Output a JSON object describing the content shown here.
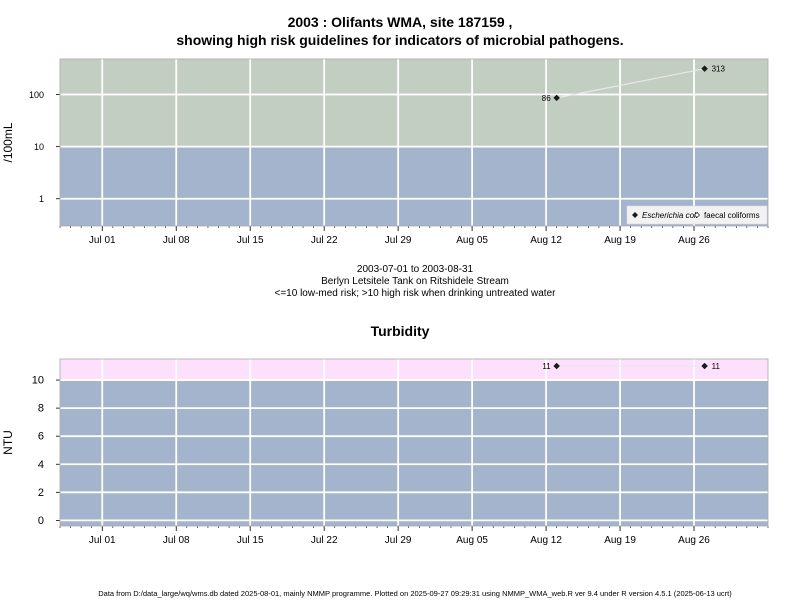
{
  "header": {
    "title_line1": "2003 : Olifants WMA, site 187159 ,",
    "title_line2": "showing high risk guidelines for indicators of microbial pathogens."
  },
  "info": {
    "date_range": "2003-07-01 to 2003-08-31",
    "site_name": "Berlyn Letsitele Tank on Ritshidele Stream",
    "risk_note": "<=10 low-med risk; >10 high risk when drinking untreated water"
  },
  "footer": {
    "text": "Data from D:/data_large/wq/wms.db dated 2025-08-01, mainly NMMP programme. Plotted on 2025-09-27 09:29:31 using NMMP_WMA_web.R ver 9.4 under R version 4.5.1 (2025-06-13 ucrt)"
  },
  "colors": {
    "low_band": "#a3b4cc",
    "high_band_micro": "#c3cec3",
    "high_band_turb": "#fce0fc",
    "grid": "#ffffff",
    "line": "#e8e8e8",
    "point": "#1a1a1a"
  },
  "chart_data": [
    {
      "type": "line",
      "title": "",
      "xlabel": "",
      "ylabel": "/100mL",
      "yscale": "log",
      "ylim": [
        0.3,
        480
      ],
      "x_range": [
        "2003-06-27",
        "2003-09-02"
      ],
      "x_tick_labels": [
        "Jul 01",
        "Jul 08",
        "Jul 15",
        "Jul 22",
        "Jul 29",
        "Aug 05",
        "Aug 12",
        "Aug 19",
        "Aug 26"
      ],
      "x_ticks": [
        "2003-07-01",
        "2003-07-08",
        "2003-07-15",
        "2003-07-22",
        "2003-07-29",
        "2003-08-05",
        "2003-08-12",
        "2003-08-19",
        "2003-08-26"
      ],
      "y_ticks": [
        1,
        10,
        100
      ],
      "y_tick_labels": [
        "1",
        "10",
        "100"
      ],
      "threshold": 10,
      "grid": true,
      "legend_position": "bottom-right",
      "series": [
        {
          "name": "Escherichia coli",
          "marker": "filled-diamond",
          "points": [
            {
              "x": "2003-08-13",
              "y": 86,
              "label": "86"
            },
            {
              "x": "2003-08-27",
              "y": 313,
              "label": "313"
            }
          ]
        },
        {
          "name": "faecal coliforms",
          "marker": "open-diamond",
          "points": []
        }
      ]
    },
    {
      "type": "line",
      "title": "Turbidity",
      "xlabel": "",
      "ylabel": "NTU",
      "yscale": "linear",
      "ylim": [
        -0.4,
        11.5
      ],
      "x_range": [
        "2003-06-27",
        "2003-09-02"
      ],
      "x_tick_labels": [
        "Jul 01",
        "Jul 08",
        "Jul 15",
        "Jul 22",
        "Jul 29",
        "Aug 05",
        "Aug 12",
        "Aug 19",
        "Aug 26"
      ],
      "x_ticks": [
        "2003-07-01",
        "2003-07-08",
        "2003-07-15",
        "2003-07-22",
        "2003-07-29",
        "2003-08-05",
        "2003-08-12",
        "2003-08-19",
        "2003-08-26"
      ],
      "y_ticks": [
        0,
        2,
        4,
        6,
        8,
        10
      ],
      "y_tick_labels": [
        "0",
        "2",
        "4",
        "6",
        "8",
        "10"
      ],
      "threshold": 10,
      "grid": true,
      "series": [
        {
          "marker": "filled-diamond",
          "points": [
            {
              "x": "2003-08-13",
              "y": 11,
              "label": "11"
            },
            {
              "x": "2003-08-27",
              "y": 11,
              "label": "11"
            }
          ]
        }
      ]
    }
  ]
}
